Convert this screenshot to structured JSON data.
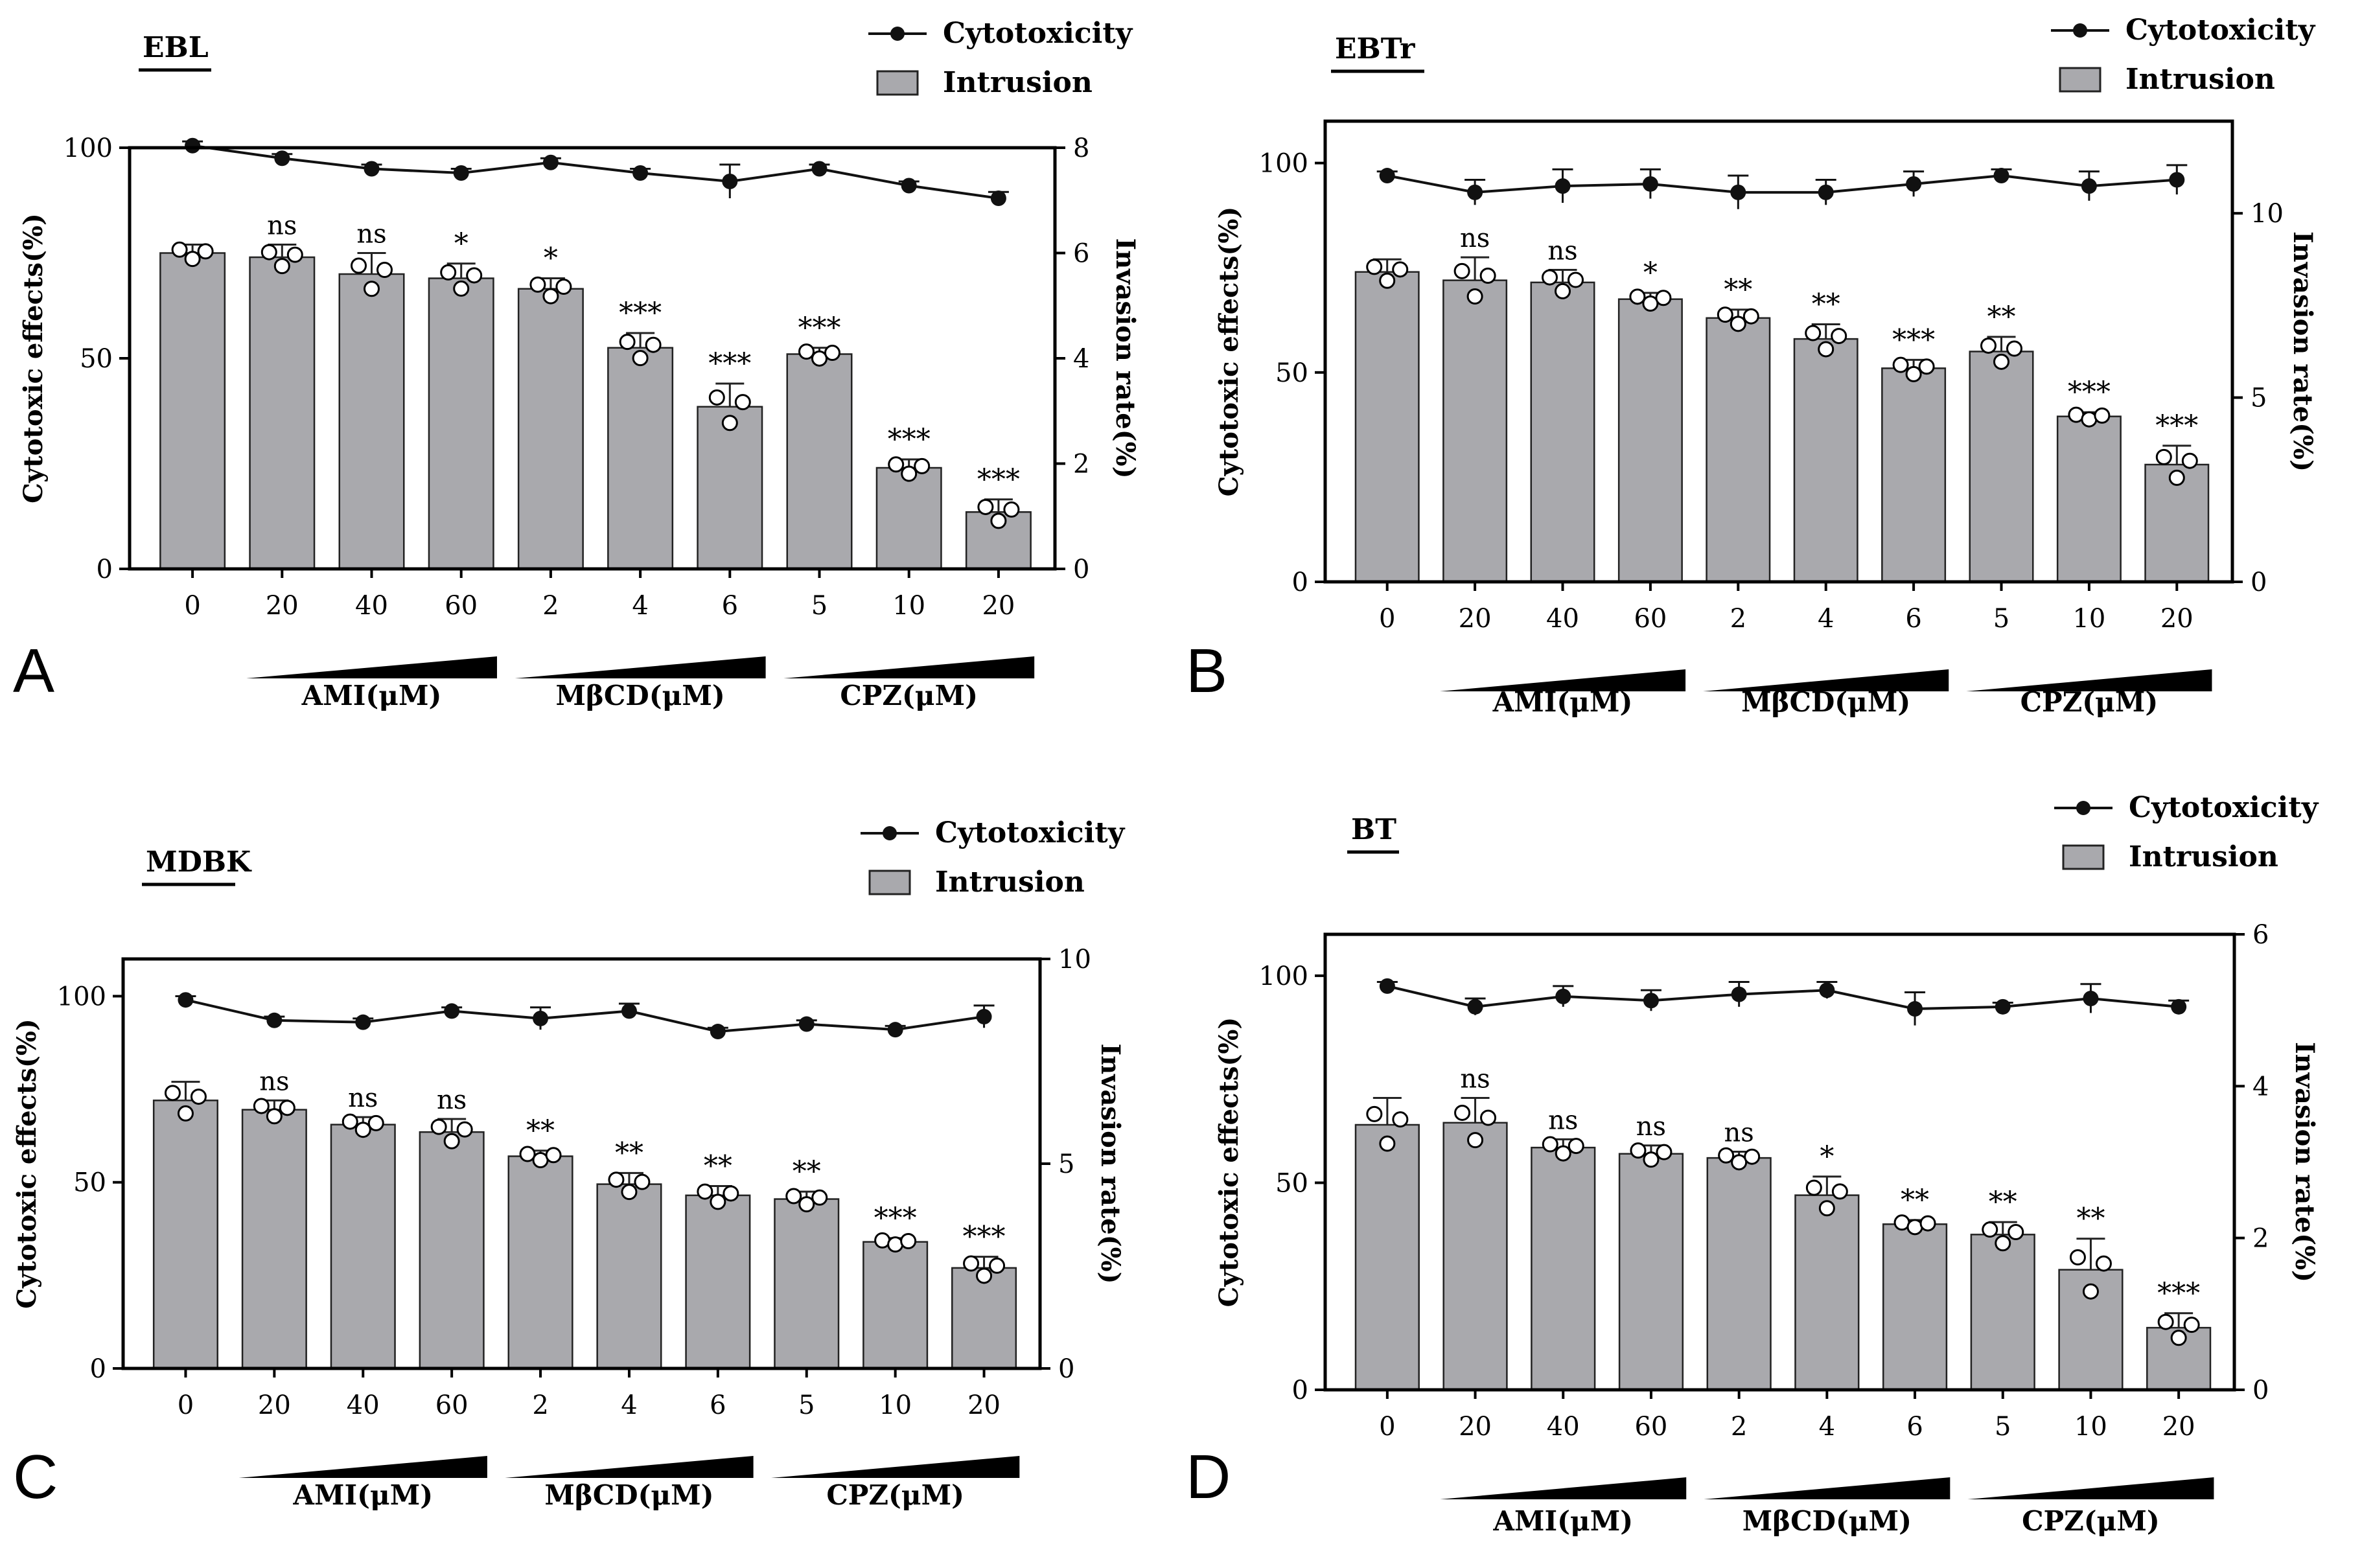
{
  "figure": {
    "series_labels": {
      "line": "Cytotoxicity",
      "bar": "Intrusion"
    },
    "left_axis_label": "Cytotoxic effects(%)",
    "right_axis_label": "Invasion rate(%)",
    "groups": [
      "AMI(μM)",
      "MβCD(μM)",
      "CPZ(μM)"
    ]
  },
  "chart_data": [
    {
      "panel": "A",
      "type": "bar",
      "title": "EBL",
      "categories": [
        "0",
        "20",
        "40",
        "60",
        "2",
        "4",
        "6",
        "5",
        "10",
        "20"
      ],
      "series": [
        {
          "name": "Intrusion",
          "axis": "left",
          "values": [
            75,
            74,
            70,
            69,
            66.5,
            52.5,
            38.5,
            51,
            24,
            13.5
          ],
          "errors": [
            2,
            3,
            5,
            3.5,
            2.5,
            3.5,
            5.5,
            1.5,
            2,
            3
          ]
        },
        {
          "name": "Cytotoxicity",
          "axis": "left",
          "values": [
            100.5,
            97.5,
            95,
            94,
            96.5,
            94,
            92,
            95,
            91,
            88
          ],
          "errors": [
            1,
            1,
            1,
            1,
            1,
            1,
            4,
            1,
            1,
            1.5
          ]
        }
      ],
      "significance": [
        "",
        "ns",
        "ns",
        "*",
        "*",
        "***",
        "***",
        "***",
        "***",
        "***"
      ],
      "ylim": [
        0,
        100
      ],
      "yticks": [
        0,
        50,
        100
      ],
      "y2lim": [
        0,
        8
      ],
      "y2ticks": [
        0,
        2,
        4,
        6,
        8
      ],
      "ylabel": "Cytotoxic effects(%)",
      "y2label": "Invasion rate(%)",
      "groups": [
        "AMI(μM)",
        "MβCD(μM)",
        "CPZ(μM)"
      ]
    },
    {
      "panel": "B",
      "type": "bar",
      "title": "EBTr",
      "categories": [
        "0",
        "20",
        "40",
        "60",
        "2",
        "4",
        "6",
        "5",
        "10",
        "20"
      ],
      "series": [
        {
          "name": "Intrusion",
          "axis": "left",
          "values": [
            74,
            72,
            71.5,
            67.5,
            63,
            58,
            51,
            55,
            39.5,
            28
          ],
          "errors": [
            3,
            5.5,
            3,
            1.5,
            2,
            3.5,
            2,
            3.5,
            1,
            4.5
          ]
        },
        {
          "name": "Cytotoxicity",
          "axis": "left",
          "values": [
            97,
            93,
            94.5,
            95,
            93,
            93,
            95,
            97,
            94.5,
            96
          ],
          "errors": [
            1,
            3,
            4,
            3.5,
            4,
            3,
            3,
            1.5,
            3.5,
            3.5
          ]
        }
      ],
      "significance": [
        "",
        "ns",
        "ns",
        "*",
        "**",
        "**",
        "***",
        "**",
        "***",
        "***"
      ],
      "ylim": [
        0,
        110
      ],
      "yticks": [
        0,
        50,
        100
      ],
      "y2lim": [
        0,
        12.5
      ],
      "y2ticks": [
        0,
        5,
        10
      ],
      "ylabel": "Cytotoxic effects(%)",
      "y2label": "Invasion rate(%)",
      "groups": [
        "AMI(μM)",
        "MβCD(μM)",
        "CPZ(μM)"
      ]
    },
    {
      "panel": "C",
      "type": "bar",
      "title": "MDBK",
      "categories": [
        "0",
        "20",
        "40",
        "60",
        "2",
        "4",
        "6",
        "5",
        "10",
        "20"
      ],
      "series": [
        {
          "name": "Intrusion",
          "axis": "left",
          "values": [
            72,
            69.5,
            65.5,
            63.5,
            57,
            49.5,
            46.5,
            45.5,
            34,
            27
          ],
          "errors": [
            5,
            2.5,
            2,
            3.5,
            1.5,
            3,
            2.5,
            2,
            1,
            3
          ]
        },
        {
          "name": "Cytotoxicity",
          "axis": "left",
          "values": [
            99,
            93.5,
            93,
            96,
            94,
            96,
            90.5,
            92.5,
            91,
            94.5
          ],
          "errors": [
            1,
            1,
            1,
            1,
            3,
            2,
            1,
            1,
            1,
            3
          ]
        }
      ],
      "significance": [
        "",
        "ns",
        "ns",
        "ns",
        "**",
        "**",
        "**",
        "**",
        "***",
        "***"
      ],
      "ylim": [
        0,
        110
      ],
      "yticks": [
        0,
        50,
        100
      ],
      "y2lim": [
        0,
        10
      ],
      "y2ticks": [
        0,
        5,
        10
      ],
      "ylabel": "Cytotoxic effects(%)",
      "y2label": "Invasion rate(%)",
      "groups": [
        "AMI(μM)",
        "MβCD(μM)",
        "CPZ(μM)"
      ]
    },
    {
      "panel": "D",
      "type": "bar",
      "title": "BT",
      "categories": [
        "0",
        "20",
        "40",
        "60",
        "2",
        "4",
        "6",
        "5",
        "10",
        "20"
      ],
      "series": [
        {
          "name": "Intrusion",
          "axis": "left",
          "values": [
            64,
            64.5,
            58.5,
            57,
            56,
            47,
            40,
            37.5,
            29,
            15
          ],
          "errors": [
            6.5,
            6,
            2,
            2,
            1.5,
            4.5,
            1,
            3,
            7.5,
            3.5
          ]
        },
        {
          "name": "Cytotoxicity",
          "axis": "left",
          "values": [
            97.5,
            92.5,
            95,
            94,
            95.5,
            96.5,
            92,
            92.5,
            94.5,
            92.5
          ],
          "errors": [
            1,
            2,
            2.5,
            2.5,
            3,
            2,
            4,
            1,
            3.5,
            1.5
          ]
        }
      ],
      "significance": [
        "",
        "ns",
        "ns",
        "ns",
        "ns",
        "*",
        "**",
        "**",
        "**",
        "***"
      ],
      "ylim": [
        0,
        110
      ],
      "yticks": [
        0,
        50,
        100
      ],
      "y2lim": [
        0,
        6
      ],
      "y2ticks": [
        0,
        2,
        4,
        6
      ],
      "ylabel": "Cytotoxic effects(%)",
      "y2label": "Invasion rate(%)",
      "groups": [
        "AMI(μM)",
        "MβCD(μM)",
        "CPZ(μM)"
      ]
    }
  ],
  "colors": {
    "bar": "#a9a9ad",
    "bar_edge": "#222222",
    "line": "#111111",
    "axis": "#000000"
  }
}
